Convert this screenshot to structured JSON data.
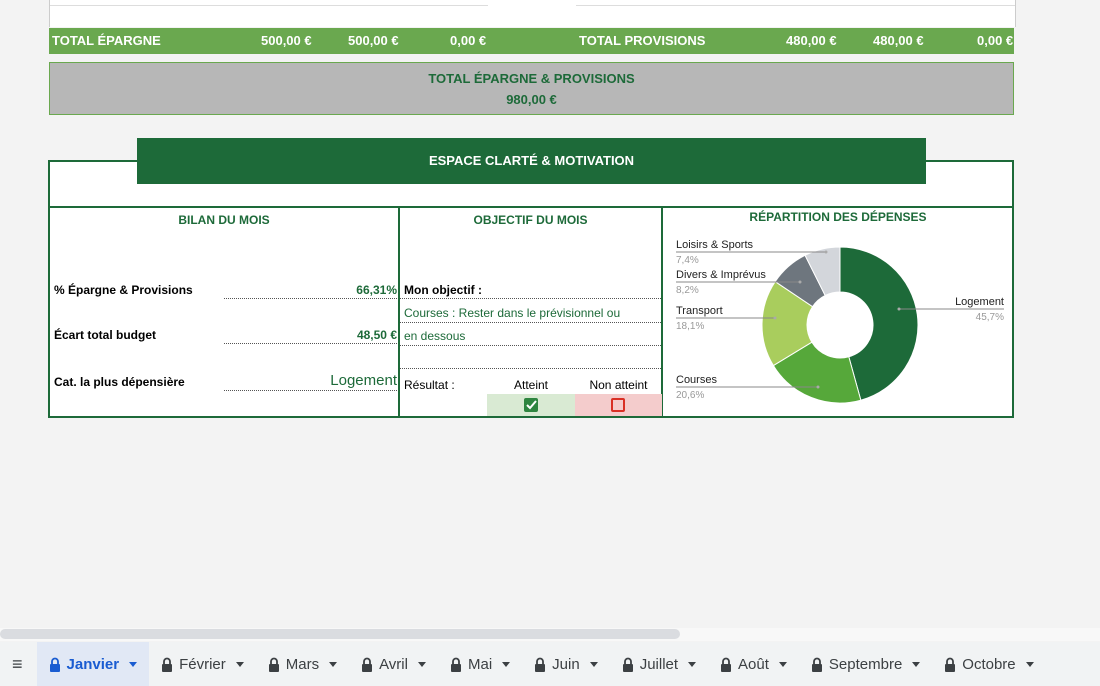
{
  "totals": {
    "cells": [
      "TOTAL ÉPARGNE",
      "500,00 €",
      "500,00 €",
      "0,00 €",
      "TOTAL PROVISIONS",
      "480,00 €",
      "480,00 €",
      "0,00 €"
    ],
    "grand_label": "TOTAL ÉPARGNE & PROVISIONS",
    "grand_value": "980,00 €"
  },
  "section": {
    "title": "ESPACE CLARTÉ & MOTIVATION"
  },
  "bilan": {
    "title": "BILAN DU MOIS",
    "rows": [
      [
        "% Épargne & Provisions",
        "66,31%"
      ],
      [
        "Écart total budget",
        "48,50 €"
      ],
      [
        "Cat. la plus dépensière",
        "Logement"
      ]
    ]
  },
  "objectif": {
    "title": "OBJECTIF DU MOIS",
    "label": "Mon objectif :",
    "lines": [
      "Courses : Rester dans le prévisionnel ou",
      "en dessous"
    ],
    "result_label": "Résultat :",
    "options": [
      "Atteint",
      "Non atteint"
    ]
  },
  "chart_data": {
    "type": "donut",
    "title": "RÉPARTITION DES DÉPENSES",
    "categories": [
      "Logement",
      "Courses",
      "Transport",
      "Divers & Imprévus",
      "Loisirs & Sports"
    ],
    "values": [
      45.7,
      20.6,
      18.1,
      8.2,
      7.4
    ],
    "value_labels": [
      "45,7%",
      "20,6%",
      "18,1%",
      "8,2%",
      "7,4%"
    ],
    "colors": [
      "#1d6a39",
      "#56a83a",
      "#a9cd5d",
      "#6e767e",
      "#d3d6db"
    ]
  },
  "tabs": [
    "Janvier",
    "Février",
    "Mars",
    "Avril",
    "Mai",
    "Juin",
    "Juillet",
    "Août",
    "Septembre",
    "Octobre"
  ]
}
